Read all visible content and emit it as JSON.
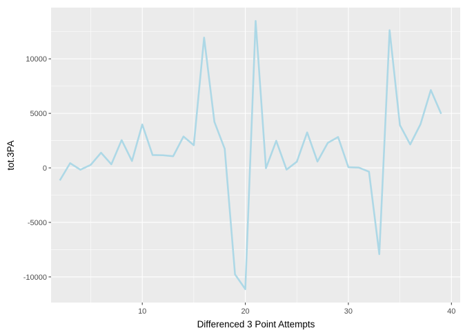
{
  "chart_data": {
    "type": "line",
    "xlabel": "Differenced 3 Point Attempts",
    "ylabel": "tot.3PA",
    "xlim": [
      1.15,
      40.85
    ],
    "ylim": [
      -12350,
      14700
    ],
    "x_ticks": [
      10,
      20,
      30,
      40
    ],
    "y_ticks": [
      -10000,
      -5000,
      0,
      5000,
      10000
    ],
    "x_tick_labels": [
      "10",
      "20",
      "30",
      "40"
    ],
    "y_tick_labels": [
      "-10000",
      "-5000",
      "0",
      "5000",
      "10000"
    ],
    "grid": true,
    "colors": {
      "panel_background": "#ebebeb",
      "grid_major": "#ffffff",
      "line": "#add8e6"
    },
    "series": [
      {
        "x": [
          2,
          3,
          4,
          5,
          6,
          7,
          8,
          9,
          10,
          11,
          12,
          13,
          14,
          15,
          16,
          17,
          18,
          19,
          20,
          21,
          22,
          23,
          24,
          25,
          26,
          27,
          28,
          29,
          30,
          31,
          32,
          33,
          34,
          35,
          36,
          37,
          38,
          39
        ],
        "values": [
          -1150,
          430,
          -170,
          280,
          1390,
          330,
          2550,
          630,
          3980,
          1180,
          1160,
          1070,
          2880,
          2080,
          11950,
          4220,
          1750,
          -9770,
          -11120,
          13480,
          -30,
          2480,
          -160,
          570,
          3250,
          580,
          2290,
          2830,
          60,
          30,
          -350,
          -7910,
          12630,
          3920,
          2150,
          4010,
          7140,
          4960
        ]
      }
    ]
  }
}
